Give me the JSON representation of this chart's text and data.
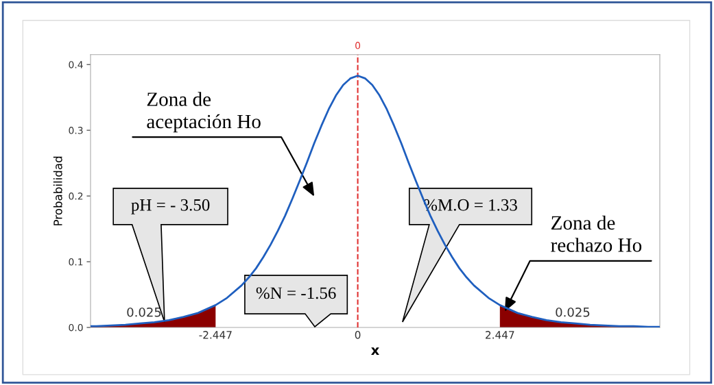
{
  "chart_data": {
    "type": "line",
    "xlabel": "x",
    "ylabel": "Probabilidad",
    "xlim": [
      -4.6,
      5.2
    ],
    "ylim": [
      0,
      0.415
    ],
    "xticks": [
      -2.447,
      0,
      2.447
    ],
    "yticks": [
      {
        "value": 0,
        "label": "0.0"
      },
      {
        "value": 0.1,
        "label": "0.1"
      },
      {
        "value": 0.2,
        "label": "0.2"
      },
      {
        "value": 0.3,
        "label": "0.3"
      },
      {
        "value": 0.4,
        "label": "0.4"
      }
    ],
    "grid": false,
    "legend": false,
    "series": [
      {
        "color": "#1f5fbf",
        "x": [
          -4.6,
          -4.5,
          -4.25,
          -4,
          -3.75,
          -3.5,
          -3.25,
          -3,
          -2.75,
          -2.447,
          -2.25,
          -2,
          -1.875,
          -1.75,
          -1.625,
          -1.5,
          -1.375,
          -1.25,
          -1.125,
          -1,
          -0.875,
          -0.75,
          -0.625,
          -0.5,
          -0.375,
          -0.25,
          -0.125,
          0,
          0.125,
          0.25,
          0.375,
          0.5,
          0.625,
          0.75,
          0.875,
          1,
          1.125,
          1.25,
          1.375,
          1.5,
          1.625,
          1.75,
          1.875,
          2,
          2.25,
          2.447,
          2.75,
          3,
          3.25,
          3.5,
          3.75,
          4,
          4.25,
          4.5,
          4.75,
          5,
          5.2
        ],
        "values": [
          0.002,
          0.002,
          0.003,
          0.004,
          0.006,
          0.008,
          0.011,
          0.016,
          0.022,
          0.034,
          0.045,
          0.064,
          0.076,
          0.09,
          0.107,
          0.126,
          0.147,
          0.17,
          0.196,
          0.223,
          0.251,
          0.28,
          0.307,
          0.332,
          0.353,
          0.369,
          0.379,
          0.383,
          0.379,
          0.369,
          0.353,
          0.332,
          0.307,
          0.28,
          0.251,
          0.223,
          0.196,
          0.17,
          0.147,
          0.126,
          0.107,
          0.09,
          0.076,
          0.064,
          0.045,
          0.034,
          0.022,
          0.016,
          0.011,
          0.008,
          0.006,
          0.004,
          0.003,
          0.002,
          0.002,
          0.001,
          0.001
        ]
      },
      {
        "type": "area",
        "color": "#8b0000",
        "x": [
          -4.6,
          -4.5,
          -4.25,
          -4,
          -3.75,
          -3.5,
          -3.25,
          -3,
          -2.75,
          -2.447
        ],
        "values": [
          0.002,
          0.002,
          0.003,
          0.004,
          0.006,
          0.008,
          0.011,
          0.016,
          0.022,
          0.034
        ]
      },
      {
        "type": "area",
        "color": "#8b0000",
        "x": [
          2.447,
          2.75,
          3,
          3.25,
          3.5,
          3.75,
          4,
          4.25,
          4.5,
          4.75,
          5,
          5.2
        ],
        "values": [
          0.034,
          0.022,
          0.016,
          0.011,
          0.008,
          0.006,
          0.004,
          0.003,
          0.002,
          0.002,
          0.001,
          0.001
        ]
      }
    ],
    "ref_lines": [
      {
        "axis": "x",
        "value": 0,
        "label": "0",
        "color": "#e03030",
        "line_style": "dashed"
      }
    ],
    "annotations": [
      "0.025",
      "0.025",
      "Zona de\naceptación Ho",
      {
        "text": "Zona de\nrechazo Ho",
        "x": 2.53,
        "y": 0.024
      },
      "pH = - 3.50",
      "%N = -1.56",
      "%M.O = 1.33"
    ]
  }
}
